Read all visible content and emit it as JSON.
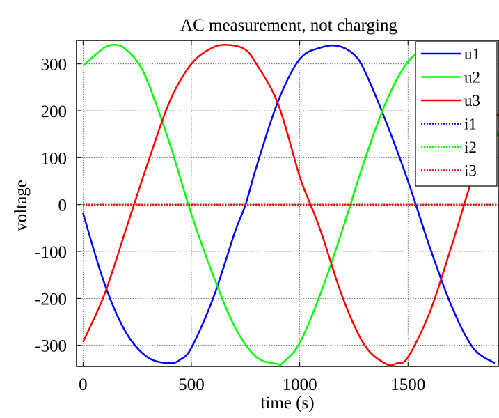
{
  "chart_data": {
    "type": "line",
    "title": "AC measurement, not charging",
    "xlabel": "time (s)",
    "ylabel": "voltage",
    "xlim": [
      -30,
      1920
    ],
    "ylim": [
      -345,
      350
    ],
    "xticks": [
      0,
      500,
      1000,
      1500
    ],
    "yticks": [
      -300,
      -200,
      -100,
      0,
      100,
      200,
      300
    ],
    "grid": true,
    "legend_position": "top-right",
    "series": [
      {
        "name": "u1",
        "color": "#0000ff",
        "style": "solid",
        "x": [
          0,
          100,
          200,
          300,
          400,
          450,
          500,
          600,
          700,
          750,
          800,
          900,
          1000,
          1100,
          1180,
          1250,
          1300,
          1400,
          1500,
          1600,
          1700,
          1800,
          1900
        ],
        "y": [
          -18,
          -170,
          -274,
          -326,
          -338,
          -330,
          -305,
          -200,
          -60,
          0,
          80,
          220,
          310,
          335,
          338,
          320,
          285,
          175,
          50,
          -90,
          -215,
          -305,
          -338
        ]
      },
      {
        "name": "u2",
        "color": "#00ff00",
        "style": "solid",
        "x": [
          0,
          100,
          160,
          200,
          250,
          300,
          400,
          500,
          600,
          700,
          800,
          900,
          920,
          1000,
          1100,
          1200,
          1300,
          1400,
          1500,
          1600,
          1690,
          1800,
          1890,
          1920
        ],
        "y": [
          296,
          335,
          340,
          330,
          305,
          260,
          130,
          -20,
          -150,
          -260,
          -325,
          -340,
          -338,
          -295,
          -185,
          -50,
          95,
          220,
          305,
          335,
          340,
          295,
          175,
          145
        ]
      },
      {
        "name": "u3",
        "color": "#ff0000",
        "style": "solid",
        "x": [
          0,
          100,
          200,
          300,
          400,
          500,
          600,
          680,
          750,
          800,
          900,
          1000,
          1050,
          1100,
          1200,
          1300,
          1400,
          1450,
          1500,
          1600,
          1700,
          1800,
          1900,
          1920
        ],
        "y": [
          -293,
          -190,
          -50,
          90,
          220,
          300,
          335,
          340,
          330,
          300,
          215,
          60,
          0,
          -60,
          -200,
          -300,
          -340,
          -338,
          -325,
          -230,
          -90,
          60,
          180,
          190
        ]
      },
      {
        "name": "i1",
        "color": "#0000ff",
        "style": "dotted",
        "x": [
          0,
          1920
        ],
        "y": [
          0,
          0
        ]
      },
      {
        "name": "i2",
        "color": "#00ff00",
        "style": "dotted",
        "x": [
          0,
          1920
        ],
        "y": [
          0,
          0
        ]
      },
      {
        "name": "i3",
        "color": "#ff0000",
        "style": "dotted",
        "x": [
          0,
          1920
        ],
        "y": [
          0,
          0
        ]
      }
    ]
  }
}
